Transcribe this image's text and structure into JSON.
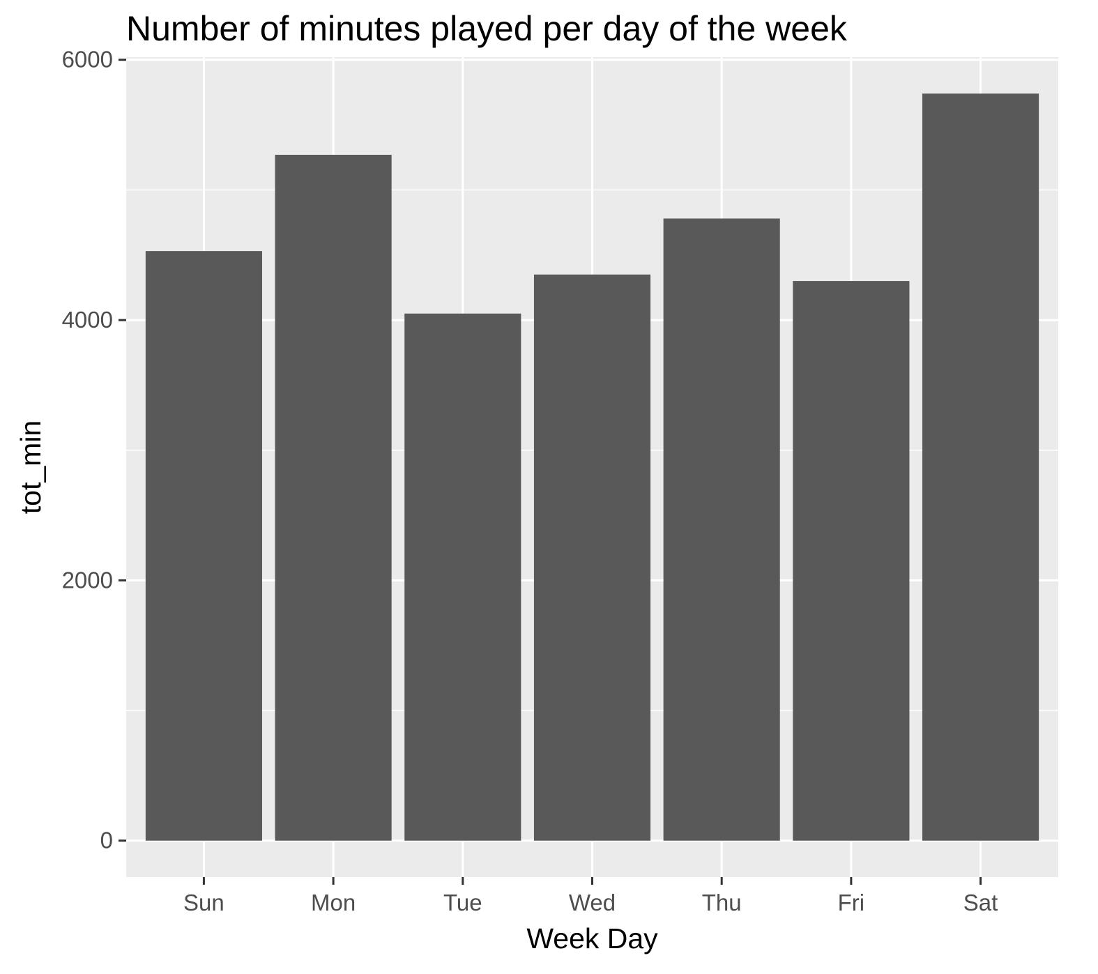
{
  "chart_data": {
    "type": "bar",
    "title": "Number of minutes played per day of the week",
    "xlabel": "Week Day",
    "ylabel": "tot_min",
    "categories": [
      "Sun",
      "Mon",
      "Tue",
      "Wed",
      "Thu",
      "Fri",
      "Sat"
    ],
    "values": [
      4530,
      5270,
      4050,
      4350,
      4780,
      4300,
      5740
    ],
    "ylim": [
      -280,
      6020
    ],
    "yticks": [
      0,
      2000,
      4000,
      6000
    ],
    "grid": true,
    "legend": "none",
    "colors": {
      "bar": "#595959",
      "panel": "#ebebeb",
      "gridline": "#ffffff"
    }
  }
}
